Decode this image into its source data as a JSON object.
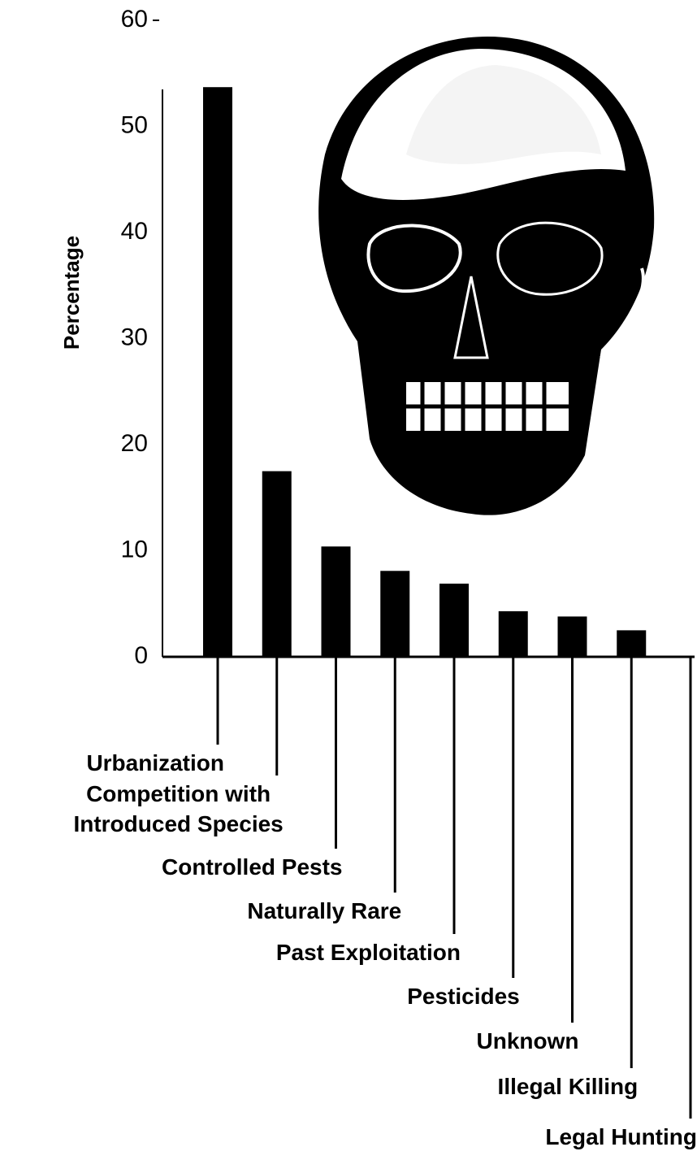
{
  "chart_data": {
    "type": "bar",
    "y_label": "Percentage",
    "categories": [
      "Urbanization",
      "Competition with\nIntroduced Species",
      "Controlled Pests",
      "Naturally Rare",
      "Past Exploitation",
      "Pesticides",
      "Unknown",
      "Illegal Killing",
      "Legal Hunting"
    ],
    "values": [
      53.7,
      17.5,
      10.4,
      8.1,
      6.9,
      4.3,
      3.8,
      2.5,
      0
    ],
    "color": "#000000",
    "ylim": [
      0,
      60
    ],
    "yticks": [
      0,
      10,
      20,
      30,
      40,
      50,
      60
    ],
    "grid": false
  }
}
